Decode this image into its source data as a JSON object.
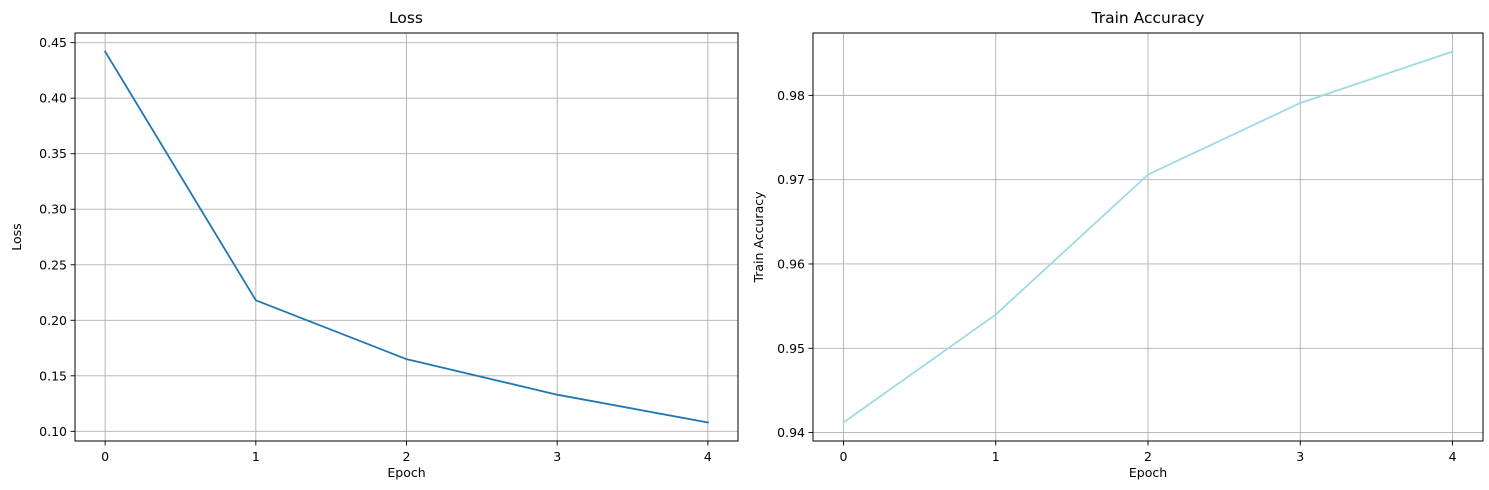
{
  "chart_data": [
    {
      "type": "line",
      "title": "Loss",
      "xlabel": "Epoch",
      "ylabel": "Loss",
      "x": [
        0,
        1,
        2,
        3,
        4
      ],
      "series": [
        {
          "values": [
            0.442,
            0.218,
            0.165,
            0.133,
            0.108
          ],
          "color": "#1f77b4"
        }
      ],
      "xticks": [
        "0",
        "1",
        "2",
        "3",
        "4"
      ],
      "yticks": [
        "0.10",
        "0.15",
        "0.20",
        "0.25",
        "0.30",
        "0.35",
        "0.40",
        "0.45"
      ],
      "xlim": [
        -0.2,
        4.2
      ],
      "ylim": [
        0.0913,
        0.4587
      ],
      "grid": true
    },
    {
      "type": "line",
      "title": "Train Accuracy",
      "xlabel": "Epoch",
      "ylabel": "Train Accuracy",
      "x": [
        0,
        1,
        2,
        3,
        4
      ],
      "series": [
        {
          "values": [
            0.9412,
            0.954,
            0.9706,
            0.9791,
            0.9852
          ],
          "color": "#9edae5"
        }
      ],
      "xticks": [
        "0",
        "1",
        "2",
        "3",
        "4"
      ],
      "yticks": [
        "0.94",
        "0.95",
        "0.96",
        "0.97",
        "0.98"
      ],
      "xlim": [
        -0.2,
        4.2
      ],
      "ylim": [
        0.939,
        0.9874
      ],
      "grid": true
    }
  ]
}
